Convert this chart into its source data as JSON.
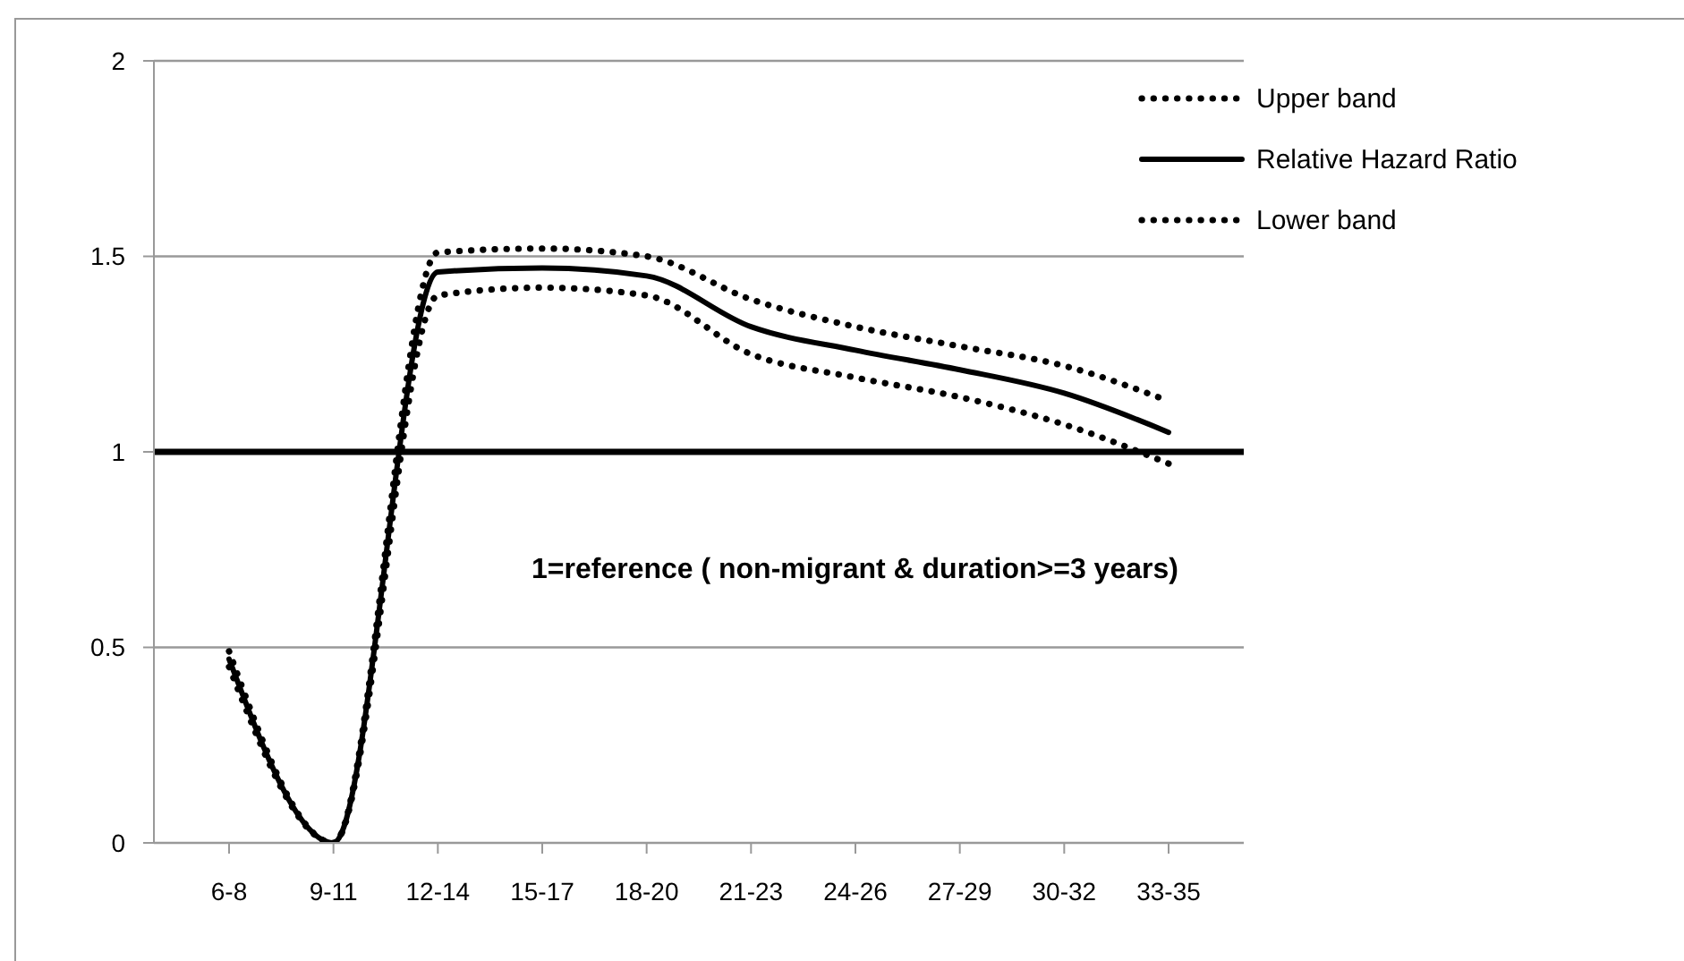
{
  "chart_data": {
    "type": "line",
    "categories": [
      "6-8",
      "9-11",
      "12-14",
      "15-17",
      "18-20",
      "21-23",
      "24-26",
      "27-29",
      "30-32",
      "33-35"
    ],
    "series": [
      {
        "name": "Upper band",
        "color": "#000000",
        "line_style": "dotted",
        "values": [
          0.49,
          0,
          1.51,
          1.52,
          1.5,
          1.39,
          1.32,
          1.27,
          1.22,
          1.13
        ]
      },
      {
        "name": "Relative Hazard Ratio",
        "color": "#000000",
        "line_style": "solid",
        "values": [
          0.47,
          0,
          1.46,
          1.47,
          1.45,
          1.32,
          1.26,
          1.21,
          1.15,
          1.05
        ]
      },
      {
        "name": "Lower band",
        "color": "#000000",
        "line_style": "dotted",
        "values": [
          0.45,
          0,
          1.4,
          1.42,
          1.4,
          1.25,
          1.19,
          1.14,
          1.07,
          0.97
        ]
      }
    ],
    "ylim": [
      0,
      2
    ],
    "yticks": [
      0,
      0.5,
      1,
      1.5,
      2
    ],
    "ref_lines": [
      {
        "axis": "y",
        "value": 1,
        "color": "#000000"
      }
    ],
    "annotations": [
      "1=reference ( non-migrant & duration>=3 years)"
    ],
    "grid": "y",
    "legend": "top right",
    "marker": "none"
  }
}
